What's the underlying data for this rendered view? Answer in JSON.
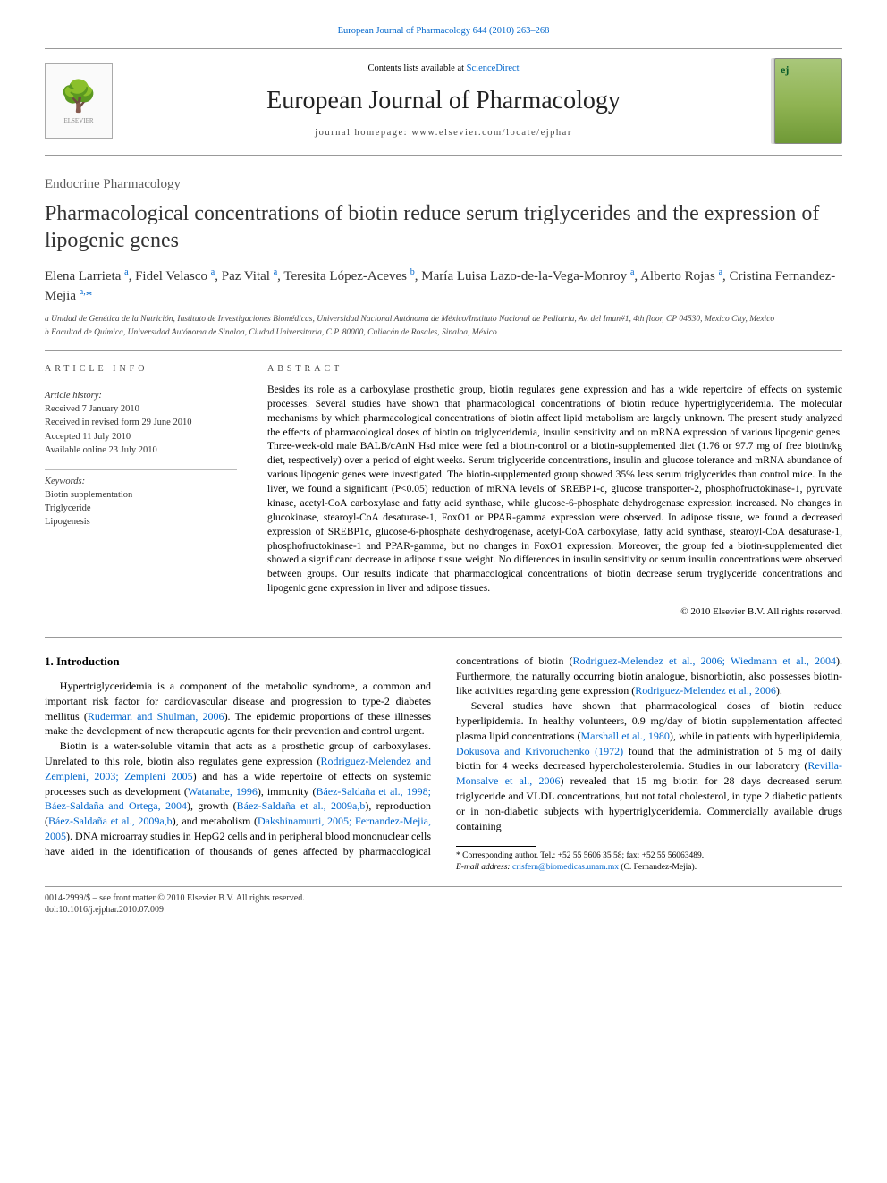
{
  "journal": {
    "top_link_label": "European Journal of Pharmacology 644 (2010) 263–268",
    "contents_prefix": "Contents lists available at ",
    "contents_link": "ScienceDirect",
    "name": "European Journal of Pharmacology",
    "homepage_prefix": "journal homepage: ",
    "homepage_url": "www.elsevier.com/locate/ejphar",
    "publisher_logo_label": "ELSEVIER"
  },
  "article": {
    "section_label": "Endocrine Pharmacology",
    "title": "Pharmacological concentrations of biotin reduce serum triglycerides and the expression of lipogenic genes",
    "authors_html": "Elena Larrieta <sup>a</sup>, Fidel Velasco <sup>a</sup>, Paz Vital <sup>a</sup>, Teresita López-Aceves <sup>b</sup>, María Luisa Lazo-de-la-Vega-Monroy <sup>a</sup>, Alberto Rojas <sup>a</sup>, Cristina Fernandez-Mejia <sup>a,</sup><span class='star'>*</span>",
    "affiliations": [
      "a Unidad de Genética de la Nutrición, Instituto de Investigaciones Biomédicas, Universidad Nacional Autónoma de México/Instituto Nacional de Pediatría, Av. del Iman#1, 4th floor, CP 04530, Mexico City, Mexico",
      "b Facultad de Química, Universidad Autónoma de Sinaloa, Ciudad Universitaria, C.P. 80000, Culiacán de Rosales, Sinaloa, México"
    ]
  },
  "info": {
    "heading": "article info",
    "history_label": "Article history:",
    "received": "Received 7 January 2010",
    "revised": "Received in revised form 29 June 2010",
    "accepted": "Accepted 11 July 2010",
    "online": "Available online 23 July 2010",
    "keywords_label": "Keywords:",
    "keywords": [
      "Biotin supplementation",
      "Triglyceride",
      "Lipogenesis"
    ]
  },
  "abstract": {
    "heading": "abstract",
    "text": "Besides its role as a carboxylase prosthetic group, biotin regulates gene expression and has a wide repertoire of effects on systemic processes. Several studies have shown that pharmacological concentrations of biotin reduce hypertriglyceridemia. The molecular mechanisms by which pharmacological concentrations of biotin affect lipid metabolism are largely unknown. The present study analyzed the effects of pharmacological doses of biotin on triglyceridemia, insulin sensitivity and on mRNA expression of various lipogenic genes. Three-week-old male BALB/cAnN Hsd mice were fed a biotin-control or a biotin-supplemented diet (1.76 or 97.7 mg of free biotin/kg diet, respectively) over a period of eight weeks. Serum triglyceride concentrations, insulin and glucose tolerance and mRNA abundance of various lipogenic genes were investigated. The biotin-supplemented group showed 35% less serum triglycerides than control mice. In the liver, we found a significant (P<0.05) reduction of mRNA levels of SREBP1-c, glucose transporter-2, phosphofructokinase-1, pyruvate kinase, acetyl-CoA carboxylase and fatty acid synthase, while glucose-6-phosphate dehydrogenase expression increased. No changes in glucokinase, stearoyl-CoA desaturase-1, FoxO1 or PPAR-gamma expression were observed. In adipose tissue, we found a decreased expression of SREBP1c, glucose-6-phosphate deshydrogenase, acetyl-CoA carboxylase, fatty acid synthase, stearoyl-CoA desaturase-1, phosphofructokinase-1 and PPAR-gamma, but no changes in FoxO1 expression. Moreover, the group fed a biotin-supplemented diet showed a significant decrease in adipose tissue weight. No differences in insulin sensitivity or serum insulin concentrations were observed between groups. Our results indicate that pharmacological concentrations of biotin decrease serum tryglyceride concentrations and lipogenic gene expression in liver and adipose tissues.",
    "copyright": "© 2010 Elsevier B.V. All rights reserved."
  },
  "body": {
    "intro_heading": "1. Introduction",
    "p1_a": "Hypertriglyceridemia is a component of the metabolic syndrome, a common and important risk factor for cardiovascular disease and progression to type-2 diabetes mellitus (",
    "p1_link1": "Ruderman and Shulman, 2006",
    "p1_b": "). The epidemic proportions of these illnesses make the development of new therapeutic agents for their prevention and control urgent.",
    "p2_a": "Biotin is a water-soluble vitamin that acts as a prosthetic group of carboxylases. Unrelated to this role, biotin also regulates gene expression (",
    "p2_link1": "Rodriguez-Melendez and Zempleni, 2003; Zempleni 2005",
    "p2_b": ") and has a wide repertoire of effects on systemic processes such as development (",
    "p2_link2": "Watanabe, 1996",
    "p2_c": "), immunity (",
    "p2_link3": "Báez-Saldaña et al., 1998; Báez-Saldaña and Ortega, 2004",
    "p2_d": "), growth (",
    "p2_link4": "Báez-Saldaña et al., 2009a,b",
    "p2_e": "), reproduction (",
    "p2_link5": "Báez-Saldaña et al., 2009a,b",
    "p2_f": "), and metabolism (",
    "p2_link6": "Dakshinamurti, 2005; Fernandez-Mejia, 2005",
    "p2_g": "). DNA microarray studies in HepG2 cells and in peripheral blood mononuclear cells have aided in the identification of thousands of genes affected by pharmacological concentrations of biotin (",
    "p2_link7": "Rodriguez-Melendez et al., 2006; Wiedmann et al., 2004",
    "p2_h": "). Furthermore, the naturally occurring biotin analogue, bisnorbiotin, also possesses biotin-like activities regarding gene expression (",
    "p2_link8": "Rodriguez-Melendez et al., 2006",
    "p2_i": ").",
    "p3_a": "Several studies have shown that pharmacological doses of biotin reduce hyperlipidemia. In healthy volunteers, 0.9 mg/day of biotin supplementation affected plasma lipid concentrations (",
    "p3_link1": "Marshall et al., 1980",
    "p3_b": "), while in patients with hyperlipidemia, ",
    "p3_link2": "Dokusova and Krivoruchenko (1972)",
    "p3_c": " found that the administration of 5 mg of daily biotin for 4 weeks decreased hypercholesterolemia. Studies in our laboratory (",
    "p3_link3": "Revilla-Monsalve et al., 2006",
    "p3_d": ") revealed that 15 mg biotin for 28 days decreased serum triglyceride and VLDL concentrations, but not total cholesterol, in type 2 diabetic patients or in non-diabetic subjects with hypertriglyceridemia. Commercially available drugs containing"
  },
  "footnote": {
    "star": "* ",
    "corr": "Corresponding author. Tel.: +52 55 5606 35 58; fax: +52 55 56063489.",
    "email_label": "E-mail address: ",
    "email": "crisfern@biomedicas.unam.mx",
    "email_tail": " (C. Fernandez-Mejia)."
  },
  "footer": {
    "left": "0014-2999/$ – see front matter © 2010 Elsevier B.V. All rights reserved.",
    "doi": "doi:10.1016/j.ejphar.2010.07.009"
  },
  "colors": {
    "link": "#0066cc",
    "rule": "#999999",
    "text": "#000000"
  }
}
